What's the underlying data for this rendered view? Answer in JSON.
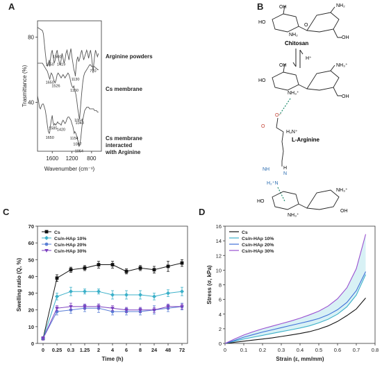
{
  "panels": {
    "A": {
      "label": "A",
      "chart_data": {
        "type": "line",
        "title": "",
        "xlabel": "Wavenumber (cm⁻¹)",
        "ylabel": "Trasmittance (%)",
        "xlim": [
          1900,
          600
        ],
        "ylim": [
          10,
          90
        ],
        "xticks": [
          1600,
          1200,
          800
        ],
        "yticks": [
          80,
          40
        ],
        "series": [
          {
            "name": "Arginine powders",
            "x": [
              1900,
              1850,
              1800,
              1780,
              1760,
              1740,
              1720,
              1700,
              1680,
              1660,
              1650,
              1640,
              1620,
              1600,
              1580,
              1560,
              1540,
              1520,
              1500,
              1480,
              1460,
              1440,
              1420,
              1400,
              1380,
              1360,
              1340,
              1320,
              1300,
              1280,
              1260,
              1240,
              1220,
              1200,
              1180,
              1160,
              1140,
              1130,
              1120,
              1100,
              1080,
              1060,
              1040,
              1020,
              1000,
              980,
              960,
              940,
              920,
              900,
              880,
              860,
              840,
              820,
              800,
              780,
              770,
              760,
              740,
              720,
              700,
              680,
              660
            ],
            "y": [
              86,
              85,
              84,
              82,
              76,
              70,
              65,
              62,
              64,
              66,
              62,
              66,
              70,
              72,
              68,
              64,
              66,
              70,
              72,
              68,
              65,
              63,
              66,
              70,
              67,
              64,
              66,
              70,
              72,
              69,
              66,
              70,
              73,
              68,
              64,
              60,
              58,
              56,
              60,
              66,
              68,
              65,
              67,
              70,
              72,
              69,
              66,
              68,
              70,
              72,
              70,
              67,
              70,
              72,
              68,
              62,
              58,
              62,
              68,
              72,
              70,
              68,
              70
            ]
          },
          {
            "name": "Cs membrane",
            "x": [
              1900,
              1850,
              1800,
              1780,
              1760,
              1740,
              1720,
              1700,
              1680,
              1660,
              1650,
              1640,
              1620,
              1600,
              1580,
              1560,
              1540,
              1520,
              1500,
              1480,
              1460,
              1440,
              1420,
              1400,
              1380,
              1360,
              1340,
              1320,
              1300,
              1280,
              1260,
              1240,
              1220,
              1200,
              1180,
              1160,
              1150,
              1140,
              1120,
              1100,
              1080,
              1064,
              1050,
              1043,
              1035,
              1020,
              1000,
              980,
              960,
              940,
              920,
              900,
              880,
              860,
              840,
              820,
              800,
              780,
              760,
              740,
              720,
              700,
              680,
              660
            ],
            "y": [
              64,
              64,
              64,
              63,
              62,
              61,
              60,
              59,
              57,
              55,
              54,
              56,
              58,
              57,
              55,
              53,
              52,
              54,
              57,
              58,
              57,
              56,
              55,
              56,
              57,
              56,
              55,
              56,
              57,
              58,
              57,
              55,
              52,
              50,
              49,
              50,
              48,
              47,
              45,
              41,
              36,
              33,
              30,
              30,
              33,
              39,
              46,
              52,
              56,
              58,
              59,
              60,
              61,
              62,
              63,
              63,
              62,
              62,
              62,
              62,
              61,
              61,
              60,
              60
            ]
          },
          {
            "name": "Cs membrane interacted with Arginine",
            "x": [
              1900,
              1880,
              1860,
              1840,
              1820,
              1800,
              1780,
              1760,
              1740,
              1720,
              1700,
              1680,
              1660,
              1650,
              1640,
              1620,
              1600,
              1585,
              1570,
              1550,
              1530,
              1510,
              1490,
              1470,
              1450,
              1420,
              1400,
              1380,
              1360,
              1340,
              1320,
              1300,
              1280,
              1260,
              1240,
              1220,
              1200,
              1180,
              1160,
              1154,
              1140,
              1120,
              1100,
              1087,
              1080,
              1060,
              1054,
              1040,
              1020,
              1000,
              980,
              960,
              940,
              920,
              900,
              880,
              860,
              840,
              820,
              800,
              780,
              760,
              740,
              720,
              700,
              680,
              660
            ],
            "y": [
              44,
              41,
              37,
              36,
              38,
              39,
              39,
              37,
              35,
              31,
              26,
              22,
              21,
              22,
              25,
              29,
              32,
              28,
              26,
              27,
              26,
              27,
              28,
              27,
              27,
              26,
              28,
              29,
              28,
              27,
              28,
              30,
              31,
              31,
              30,
              29,
              27,
              25,
              22,
              21,
              22,
              21,
              19,
              17,
              17,
              14,
              13,
              14,
              18,
              24,
              29,
              32,
              35,
              36,
              37,
              37,
              37,
              36,
              36,
              36,
              36,
              36,
              35,
              35,
              35,
              34,
              34
            ]
          }
        ],
        "annotations": [
          {
            "text": "Arginine powders"
          },
          {
            "text": "Cs membrane"
          },
          {
            "text": "Cs membrane interacted with Arginine"
          }
        ],
        "peak_labels": [
          {
            "text": "1650",
            "series": 0
          },
          {
            "text": "1500",
            "series": 0
          },
          {
            "text": "1419",
            "series": 0
          },
          {
            "text": "1130",
            "series": 0
          },
          {
            "text": "770",
            "series": 0
          },
          {
            "text": "1650",
            "series": 1
          },
          {
            "text": "1526",
            "series": 1
          },
          {
            "text": "1150",
            "series": 1
          },
          {
            "text": "1064",
            "series": 1
          },
          {
            "text": "1043",
            "series": 1
          },
          {
            "text": "1650",
            "series": 2
          },
          {
            "text": "1585",
            "series": 2
          },
          {
            "text": "1420",
            "series": 2
          },
          {
            "text": "1154",
            "series": 2
          },
          {
            "text": "1087",
            "series": 2
          },
          {
            "text": "1054",
            "series": 2
          }
        ]
      }
    },
    "B": {
      "label": "B",
      "chitosan_label": "Chitosan",
      "arginine_label": "L-Arginine",
      "hplus": "H⁺",
      "groups": {
        "oh": "OH",
        "ho": "HO",
        "nh2": "NH₂",
        "nh3": "NH₃⁺",
        "o": "O",
        "o_minus": "O⁻",
        "h3n": "H₃N⁺",
        "nh": "NH",
        "h": "H",
        "n": "N",
        "h2n": "H₂⁺N"
      }
    },
    "C": {
      "label": "C",
      "chart_data": {
        "type": "line",
        "title": "",
        "xlabel": "Time (h)",
        "ylabel": "Swelling ratio (Q, %)",
        "categories": [
          "0",
          "0.25",
          "0.3",
          "1.25",
          "2",
          "4",
          "6",
          "8",
          "24",
          "48",
          "72"
        ],
        "ylim": [
          0,
          70
        ],
        "yticks": [
          0,
          10,
          20,
          30,
          40,
          50,
          60,
          70
        ],
        "legend_position": "top-left",
        "series": [
          {
            "name": "Cs",
            "color": "#111111",
            "marker": "square",
            "values": [
              3,
              39,
              44,
              45,
              47,
              47,
              43,
              45,
              44,
              46,
              48
            ],
            "errors": [
              1,
              2,
              1.5,
              1.5,
              2,
              2,
              1.5,
              1.5,
              2,
              3,
              2
            ]
          },
          {
            "name": "Cs/n-HAp 10%",
            "color": "#3bb0c9",
            "marker": "diamond",
            "values": [
              3,
              28,
              31,
              31,
              31,
              29,
              29,
              29,
              28,
              30,
              31
            ],
            "errors": [
              1,
              2,
              2.5,
              1.5,
              1.5,
              2.5,
              2.5,
              2.5,
              2,
              2,
              2.5
            ]
          },
          {
            "name": "Cs/n-HAp 20%",
            "color": "#5a7fd6",
            "marker": "circle",
            "values": [
              3,
              19,
              20,
              21,
              21,
              19,
              19,
              19,
              20,
              21,
              22
            ],
            "errors": [
              1,
              2,
              2,
              2,
              2.5,
              2,
              2,
              2,
              2.5,
              2,
              2
            ]
          },
          {
            "name": "Cs/n-HAp 30%",
            "color": "#7b3fbf",
            "marker": "triangle-down",
            "values": [
              3,
              21,
              22,
              22,
              22,
              21,
              20,
              20,
              20,
              22,
              22
            ],
            "errors": [
              1,
              1.5,
              2,
              1.5,
              1.5,
              1.5,
              1.5,
              1.5,
              1.5,
              1.5,
              1.5
            ]
          }
        ]
      }
    },
    "D": {
      "label": "D",
      "chart_data": {
        "type": "line",
        "title": "",
        "xlabel": "Strain (ε, mm/mm)",
        "ylabel": "Stress (σ, kPa)",
        "xlim": [
          0,
          0.8
        ],
        "ylim": [
          0,
          16
        ],
        "xticks": [
          0,
          0.1,
          0.2,
          0.3,
          0.4,
          0.5,
          0.6,
          0.7,
          0.8
        ],
        "yticks": [
          0,
          2,
          4,
          6,
          8,
          10,
          12,
          14,
          16
        ],
        "legend_position": "top-left",
        "series": [
          {
            "name": "Cs",
            "color": "#111111",
            "x": [
              0,
              0.05,
              0.1,
              0.15,
              0.2,
              0.25,
              0.3,
              0.35,
              0.4,
              0.45,
              0.5,
              0.55,
              0.6,
              0.65,
              0.7,
              0.75
            ],
            "y": [
              0,
              0.15,
              0.3,
              0.45,
              0.6,
              0.75,
              0.95,
              1.15,
              1.35,
              1.6,
              1.95,
              2.4,
              3.0,
              3.8,
              4.7,
              6.2
            ]
          },
          {
            "name": "Cs/n-HAp 10%",
            "color": "#3bb0c9",
            "x": [
              0,
              0.05,
              0.1,
              0.15,
              0.2,
              0.25,
              0.3,
              0.35,
              0.4,
              0.45,
              0.5,
              0.55,
              0.6,
              0.65,
              0.7,
              0.75
            ],
            "y": [
              0,
              0.3,
              0.6,
              0.85,
              1.1,
              1.35,
              1.6,
              1.85,
              2.1,
              2.4,
              2.8,
              3.3,
              4.0,
              5.0,
              6.6,
              9.4
            ]
          },
          {
            "name": "Cs/n-HAp 20%",
            "color": "#3f6fd8",
            "x": [
              0,
              0.05,
              0.1,
              0.15,
              0.2,
              0.25,
              0.3,
              0.35,
              0.4,
              0.45,
              0.5,
              0.55,
              0.6,
              0.65,
              0.7,
              0.75
            ],
            "y": [
              0,
              0.4,
              0.85,
              1.2,
              1.55,
              1.85,
              2.15,
              2.45,
              2.75,
              3.05,
              3.4,
              3.9,
              4.6,
              5.6,
              7.2,
              9.8
            ]
          },
          {
            "name": "Cs/n-HAp 30%",
            "color": "#9a4fd0",
            "x": [
              0,
              0.05,
              0.1,
              0.15,
              0.2,
              0.25,
              0.3,
              0.35,
              0.4,
              0.45,
              0.5,
              0.55,
              0.6,
              0.65,
              0.7,
              0.75
            ],
            "y": [
              0,
              0.6,
              1.15,
              1.6,
              2.0,
              2.35,
              2.7,
              3.05,
              3.45,
              3.9,
              4.4,
              5.1,
              6.1,
              7.6,
              10.2,
              14.9
            ]
          }
        ]
      }
    }
  }
}
